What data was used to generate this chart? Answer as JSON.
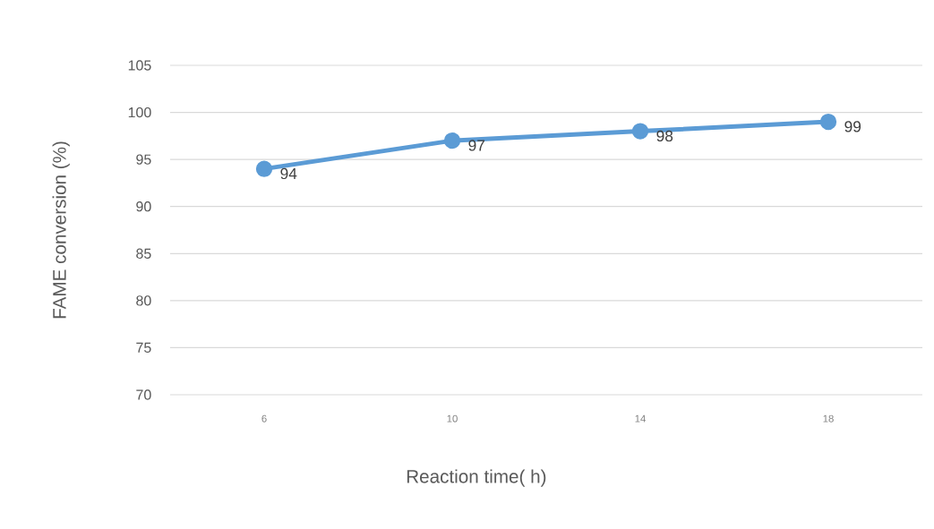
{
  "chart_data": {
    "type": "line",
    "xlabel": "Reaction time( h)",
    "ylabel": "FAME conversion (%)",
    "categories": [
      "6",
      "10",
      "14",
      "18"
    ],
    "series": [
      {
        "color": "#5b9bd5",
        "values": [
          94,
          97,
          98,
          99
        ]
      }
    ],
    "ylim": [
      70,
      105
    ],
    "yticks": [
      70,
      75,
      80,
      85,
      90,
      95,
      100,
      105
    ],
    "grid": "y",
    "marker": "circle",
    "line_style": "solid",
    "data_labels": true
  }
}
